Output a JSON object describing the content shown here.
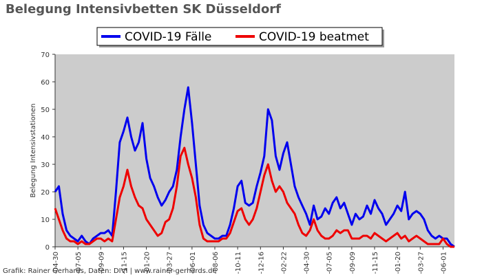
{
  "chart_data": {
    "type": "line",
    "title": "Belegung Intensivbetten SK Düsseldorf",
    "ylabel": "Belegung Intensivstationen",
    "xlabel": "",
    "ylim": [
      0,
      70
    ],
    "yticks": [
      0,
      10,
      20,
      30,
      40,
      50,
      60,
      70
    ],
    "grid": false,
    "legend_position": "top-center",
    "background": "#cccccc",
    "xticks": [
      "-04-30",
      "-07-05",
      "-09-09",
      "-11-15",
      "-01-20",
      "-03-27",
      "-06-01",
      "-08-06",
      "-10-11",
      "-12-16",
      "-02-22",
      "-04-30",
      "-07-05",
      "-09-09",
      "-11-15",
      "-01-20",
      "-03-27",
      "-06-01"
    ],
    "series": [
      {
        "name": "COVID-19 Fälle",
        "color": "#0000ee",
        "values": [
          20,
          22,
          12,
          6,
          4,
          3,
          2,
          4,
          2,
          1,
          3,
          4,
          5,
          5,
          6,
          4,
          20,
          38,
          42,
          47,
          40,
          35,
          38,
          45,
          32,
          25,
          22,
          18,
          15,
          17,
          20,
          22,
          28,
          40,
          50,
          58,
          45,
          30,
          15,
          8,
          5,
          4,
          3,
          3,
          4,
          4,
          8,
          14,
          22,
          24,
          16,
          15,
          16,
          22,
          27,
          33,
          50,
          46,
          33,
          28,
          34,
          38,
          30,
          22,
          18,
          15,
          12,
          8,
          15,
          10,
          11,
          14,
          12,
          16,
          18,
          14,
          16,
          12,
          8,
          12,
          10,
          11,
          15,
          12,
          17,
          14,
          12,
          8,
          10,
          12,
          15,
          13,
          20,
          10,
          12,
          13,
          12,
          10,
          6,
          4,
          3,
          4,
          3,
          3,
          1,
          0
        ]
      },
      {
        "name": "COVID-19 beatmet",
        "color": "#ee0000",
        "values": [
          14,
          10,
          6,
          3,
          2,
          2,
          1,
          2,
          1,
          1,
          2,
          3,
          3,
          2,
          3,
          2,
          10,
          18,
          22,
          28,
          22,
          18,
          15,
          14,
          10,
          8,
          6,
          4,
          5,
          9,
          10,
          14,
          22,
          33,
          36,
          30,
          25,
          18,
          8,
          3,
          2,
          2,
          2,
          2,
          3,
          3,
          5,
          9,
          13,
          14,
          10,
          8,
          10,
          14,
          20,
          26,
          30,
          24,
          20,
          22,
          20,
          16,
          14,
          12,
          8,
          5,
          4,
          6,
          10,
          6,
          4,
          3,
          3,
          4,
          6,
          5,
          6,
          6,
          3,
          3,
          3,
          4,
          4,
          3,
          5,
          4,
          3,
          2,
          3,
          4,
          5,
          3,
          4,
          2,
          3,
          4,
          3,
          2,
          1,
          1,
          1,
          1,
          3,
          1,
          0,
          0
        ]
      }
    ]
  },
  "credit": "Grafik: Rainer Gerhards, Daten: DIVI | www.rainer-gerhards.de"
}
